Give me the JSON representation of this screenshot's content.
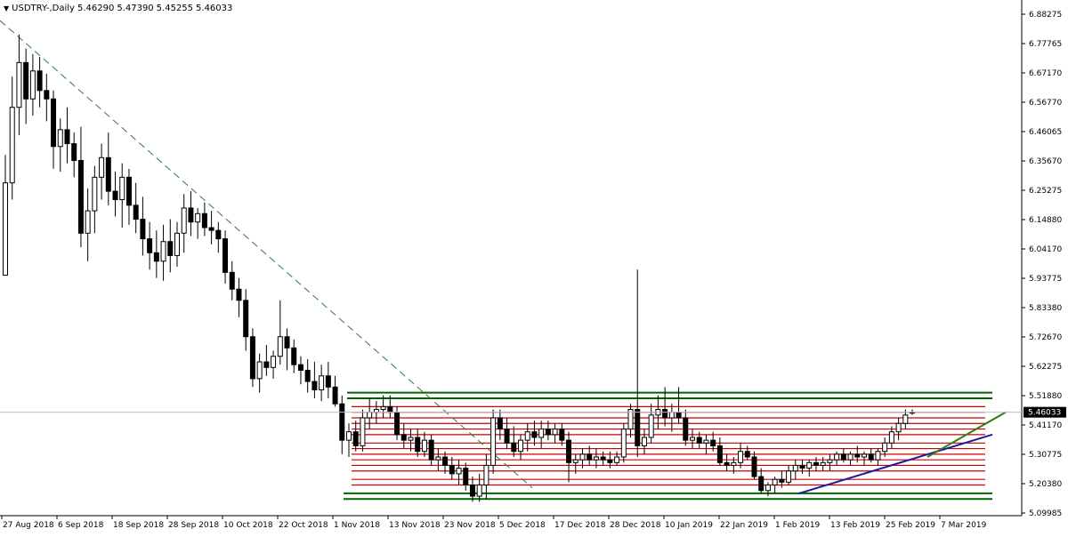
{
  "header": {
    "symbol_timeframe": "USDTRY-,Daily",
    "open": "5.46290",
    "high": "5.47390",
    "low": "5.45255",
    "close": "5.46033"
  },
  "price_axis_labels": [
    "6.88275",
    "6.77765",
    "6.67170",
    "6.56770",
    "6.46065",
    "6.35670",
    "6.25275",
    "6.14880",
    "6.04170",
    "5.93775",
    "5.83380",
    "5.72670",
    "5.62275",
    "5.51880",
    "5.41170",
    "5.30775",
    "5.20380",
    "5.09985"
  ],
  "current_price_label": "5.46033",
  "date_axis_labels": [
    "27 Aug 2018",
    "6 Sep 2018",
    "18 Sep 2018",
    "28 Sep 2018",
    "10 Oct 2018",
    "22 Oct 2018",
    "1 Nov 2018",
    "13 Nov 2018",
    "23 Nov 2018",
    "5 Dec 2018",
    "17 Dec 2018",
    "28 Dec 2018",
    "10 Jan 2019",
    "22 Jan 2019",
    "1 Feb 2019",
    "13 Feb 2019",
    "25 Feb 2019",
    "7 Mar 2019"
  ],
  "colors": {
    "bull": "#ffffff",
    "bear": "#000000",
    "wick": "#000000",
    "red_lines": "#cc0000",
    "green_lines": "#006400",
    "trend_blue": "#1a1aa0",
    "trend_green": "#2e7d10",
    "dashed": "#2e7d3a"
  },
  "chart_data": {
    "type": "candlestick",
    "y_range": [
      5.09985,
      6.88275
    ],
    "candles": [
      [
        5.95,
        6.38,
        5.95,
        6.28
      ],
      [
        6.28,
        6.66,
        6.22,
        6.55
      ],
      [
        6.55,
        6.81,
        6.45,
        6.71
      ],
      [
        6.71,
        6.76,
        6.49,
        6.58
      ],
      [
        6.58,
        6.74,
        6.52,
        6.68
      ],
      [
        6.68,
        6.73,
        6.55,
        6.61
      ],
      [
        6.61,
        6.67,
        6.5,
        6.58
      ],
      [
        6.58,
        6.61,
        6.33,
        6.41
      ],
      [
        6.41,
        6.51,
        6.32,
        6.47
      ],
      [
        6.47,
        6.55,
        6.35,
        6.42
      ],
      [
        6.42,
        6.46,
        6.3,
        6.36
      ],
      [
        6.36,
        6.48,
        6.05,
        6.1
      ],
      [
        6.1,
        6.26,
        6.0,
        6.18
      ],
      [
        6.18,
        6.34,
        6.1,
        6.3
      ],
      [
        6.3,
        6.42,
        6.22,
        6.37
      ],
      [
        6.37,
        6.46,
        6.2,
        6.25
      ],
      [
        6.25,
        6.32,
        6.16,
        6.22
      ],
      [
        6.22,
        6.35,
        6.12,
        6.3
      ],
      [
        6.3,
        6.33,
        6.13,
        6.2
      ],
      [
        6.2,
        6.28,
        6.1,
        6.15
      ],
      [
        6.15,
        6.23,
        6.02,
        6.08
      ],
      [
        6.08,
        6.14,
        5.97,
        6.03
      ],
      [
        6.03,
        6.11,
        5.94,
        6.0
      ],
      [
        6.0,
        6.13,
        5.93,
        6.07
      ],
      [
        6.07,
        6.15,
        5.96,
        6.02
      ],
      [
        6.02,
        6.14,
        5.98,
        6.1
      ],
      [
        6.1,
        6.24,
        6.03,
        6.19
      ],
      [
        6.19,
        6.25,
        6.09,
        6.14
      ],
      [
        6.14,
        6.19,
        6.08,
        6.17
      ],
      [
        6.17,
        6.21,
        6.09,
        6.12
      ],
      [
        6.12,
        6.18,
        6.06,
        6.11
      ],
      [
        6.11,
        6.14,
        6.03,
        6.08
      ],
      [
        6.08,
        6.11,
        5.92,
        5.96
      ],
      [
        5.96,
        6.0,
        5.86,
        5.9
      ],
      [
        5.9,
        5.94,
        5.8,
        5.86
      ],
      [
        5.86,
        5.9,
        5.68,
        5.73
      ],
      [
        5.73,
        5.76,
        5.55,
        5.58
      ],
      [
        5.58,
        5.67,
        5.53,
        5.64
      ],
      [
        5.64,
        5.7,
        5.59,
        5.62
      ],
      [
        5.62,
        5.68,
        5.58,
        5.66
      ],
      [
        5.66,
        5.86,
        5.63,
        5.73
      ],
      [
        5.73,
        5.76,
        5.61,
        5.69
      ],
      [
        5.69,
        5.72,
        5.6,
        5.63
      ],
      [
        5.63,
        5.66,
        5.56,
        5.61
      ],
      [
        5.61,
        5.65,
        5.53,
        5.57
      ],
      [
        5.57,
        5.64,
        5.51,
        5.54
      ],
      [
        5.54,
        5.63,
        5.5,
        5.59
      ],
      [
        5.59,
        5.64,
        5.51,
        5.55
      ],
      [
        5.55,
        5.59,
        5.48,
        5.49
      ],
      [
        5.49,
        5.52,
        5.31,
        5.36
      ],
      [
        5.36,
        5.42,
        5.3,
        5.39
      ],
      [
        5.39,
        5.43,
        5.32,
        5.34
      ],
      [
        5.34,
        5.47,
        5.32,
        5.44
      ],
      [
        5.44,
        5.51,
        5.4,
        5.46
      ],
      [
        5.46,
        5.5,
        5.42,
        5.47
      ],
      [
        5.47,
        5.52,
        5.44,
        5.48
      ],
      [
        5.48,
        5.52,
        5.44,
        5.46
      ],
      [
        5.46,
        5.48,
        5.36,
        5.38
      ],
      [
        5.38,
        5.42,
        5.33,
        5.36
      ],
      [
        5.36,
        5.4,
        5.32,
        5.37
      ],
      [
        5.37,
        5.4,
        5.3,
        5.32
      ],
      [
        5.32,
        5.39,
        5.3,
        5.36
      ],
      [
        5.36,
        5.38,
        5.27,
        5.29
      ],
      [
        5.29,
        5.33,
        5.25,
        5.3
      ],
      [
        5.3,
        5.32,
        5.24,
        5.27
      ],
      [
        5.27,
        5.3,
        5.22,
        5.24
      ],
      [
        5.24,
        5.29,
        5.2,
        5.26
      ],
      [
        5.26,
        5.28,
        5.18,
        5.2
      ],
      [
        5.2,
        5.23,
        5.14,
        5.16
      ],
      [
        5.16,
        5.24,
        5.14,
        5.2
      ],
      [
        5.2,
        5.31,
        5.15,
        5.27
      ],
      [
        5.27,
        5.47,
        5.24,
        5.44
      ],
      [
        5.44,
        5.47,
        5.36,
        5.4
      ],
      [
        5.4,
        5.44,
        5.33,
        5.35
      ],
      [
        5.35,
        5.41,
        5.3,
        5.32
      ],
      [
        5.32,
        5.38,
        5.29,
        5.36
      ],
      [
        5.36,
        5.42,
        5.32,
        5.39
      ],
      [
        5.39,
        5.43,
        5.34,
        5.37
      ],
      [
        5.37,
        5.43,
        5.33,
        5.4
      ],
      [
        5.4,
        5.43,
        5.36,
        5.38
      ],
      [
        5.38,
        5.42,
        5.35,
        5.4
      ],
      [
        5.4,
        5.42,
        5.34,
        5.36
      ],
      [
        5.36,
        5.39,
        5.21,
        5.28
      ],
      [
        5.28,
        5.31,
        5.24,
        5.29
      ],
      [
        5.29,
        5.33,
        5.26,
        5.31
      ],
      [
        5.31,
        5.34,
        5.27,
        5.29
      ],
      [
        5.29,
        5.33,
        5.26,
        5.3
      ],
      [
        5.3,
        5.32,
        5.27,
        5.29
      ],
      [
        5.29,
        5.32,
        5.26,
        5.28
      ],
      [
        5.28,
        5.32,
        5.27,
        5.3
      ],
      [
        5.3,
        5.42,
        5.28,
        5.4
      ],
      [
        5.4,
        5.49,
        5.37,
        5.47
      ],
      [
        5.47,
        5.97,
        5.3,
        5.34
      ],
      [
        5.34,
        5.4,
        5.31,
        5.37
      ],
      [
        5.37,
        5.49,
        5.35,
        5.45
      ],
      [
        5.45,
        5.52,
        5.4,
        5.47
      ],
      [
        5.47,
        5.55,
        5.41,
        5.44
      ],
      [
        5.44,
        5.49,
        5.39,
        5.46
      ],
      [
        5.46,
        5.55,
        5.42,
        5.44
      ],
      [
        5.44,
        5.47,
        5.34,
        5.36
      ],
      [
        5.36,
        5.4,
        5.33,
        5.37
      ],
      [
        5.37,
        5.39,
        5.33,
        5.35
      ],
      [
        5.35,
        5.38,
        5.31,
        5.36
      ],
      [
        5.36,
        5.39,
        5.32,
        5.34
      ],
      [
        5.34,
        5.37,
        5.27,
        5.28
      ],
      [
        5.28,
        5.31,
        5.25,
        5.27
      ],
      [
        5.27,
        5.3,
        5.24,
        5.28
      ],
      [
        5.28,
        5.35,
        5.26,
        5.32
      ],
      [
        5.32,
        5.34,
        5.29,
        5.3
      ],
      [
        5.3,
        5.32,
        5.22,
        5.23
      ],
      [
        5.23,
        5.26,
        5.17,
        5.18
      ],
      [
        5.18,
        5.21,
        5.16,
        5.2
      ],
      [
        5.2,
        5.23,
        5.17,
        5.22
      ],
      [
        5.22,
        5.25,
        5.19,
        5.21
      ],
      [
        5.21,
        5.27,
        5.2,
        5.25
      ],
      [
        5.25,
        5.29,
        5.22,
        5.27
      ],
      [
        5.27,
        5.29,
        5.24,
        5.26
      ],
      [
        5.26,
        5.29,
        5.23,
        5.28
      ],
      [
        5.28,
        5.3,
        5.25,
        5.27
      ],
      [
        5.27,
        5.3,
        5.25,
        5.28
      ],
      [
        5.28,
        5.31,
        5.25,
        5.29
      ],
      [
        5.29,
        5.32,
        5.27,
        5.31
      ],
      [
        5.31,
        5.33,
        5.28,
        5.29
      ],
      [
        5.29,
        5.32,
        5.27,
        5.31
      ],
      [
        5.31,
        5.34,
        5.28,
        5.3
      ],
      [
        5.3,
        5.32,
        5.27,
        5.31
      ],
      [
        5.31,
        5.33,
        5.28,
        5.29
      ],
      [
        5.29,
        5.33,
        5.27,
        5.32
      ],
      [
        5.32,
        5.37,
        5.3,
        5.35
      ],
      [
        5.35,
        5.41,
        5.33,
        5.39
      ],
      [
        5.39,
        5.44,
        5.36,
        5.42
      ],
      [
        5.42,
        5.47,
        5.4,
        5.45
      ],
      [
        5.46,
        5.47,
        5.45,
        5.46
      ]
    ],
    "red_levels": [
      5.2,
      5.22,
      5.25,
      5.27,
      5.29,
      5.31,
      5.33,
      5.35,
      5.38,
      5.4,
      5.42,
      5.44,
      5.46,
      5.48
    ],
    "green_levels": [
      5.15,
      5.17,
      5.51,
      5.53
    ],
    "dashed_trendline": [
      [
        0,
        6.86
      ],
      [
        88,
        5.19
      ]
    ],
    "blue_trendline": [
      [
        0,
        5.17
      ],
      [
        1,
        5.38
      ]
    ],
    "green_trendline": [
      [
        0,
        5.3
      ],
      [
        1,
        5.46
      ]
    ]
  }
}
